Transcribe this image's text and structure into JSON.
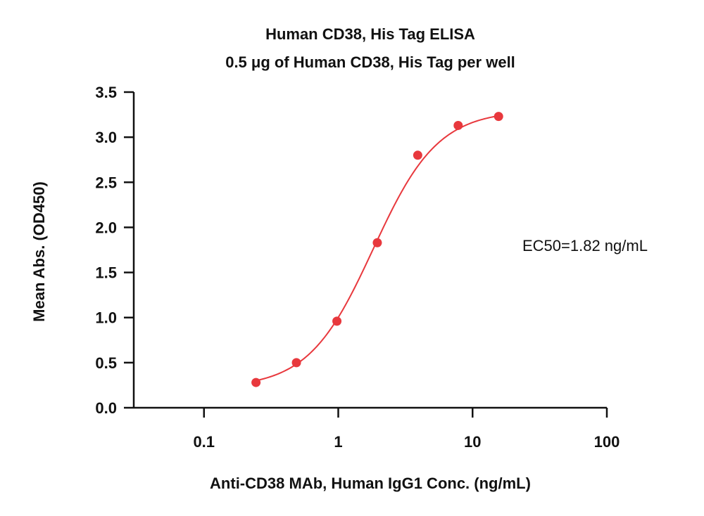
{
  "chart_data": {
    "type": "scatter",
    "title": "Human CD38, His Tag ELISA",
    "subtitle": "0.5 μg of Human CD38, His Tag per well",
    "xlabel": "Anti-CD38 MAb, Human IgG1 Conc. (ng/mL)",
    "ylabel": "Mean Abs. (OD450)",
    "x_scale": "log",
    "xlim": [
      0.03,
      100
    ],
    "ylim": [
      0,
      3.5
    ],
    "x_ticks": [
      0.1,
      1,
      10,
      100
    ],
    "x_tick_labels": [
      "0.1",
      "1",
      "10",
      "100"
    ],
    "y_ticks": [
      0,
      0.5,
      1,
      1.5,
      2,
      2.5,
      3,
      3.5
    ],
    "y_tick_labels": [
      "0.0",
      "0.5",
      "1.0",
      "1.5",
      "2.0",
      "2.5",
      "3.0",
      "3.5"
    ],
    "grid": false,
    "series": [
      {
        "color": "#e8383d",
        "x": [
          0.244,
          0.488,
          0.977,
          1.953,
          3.906,
          7.813,
          15.625
        ],
        "y": [
          0.28,
          0.5,
          0.96,
          1.83,
          2.8,
          3.13,
          3.23
        ]
      }
    ],
    "fit": {
      "model": "4PL",
      "color": "#e8383d",
      "bottom": 0.22,
      "top": 3.3,
      "ec50": 1.82,
      "hill": 1.8
    },
    "annotations": [
      "EC50=1.82 ng/mL"
    ]
  }
}
